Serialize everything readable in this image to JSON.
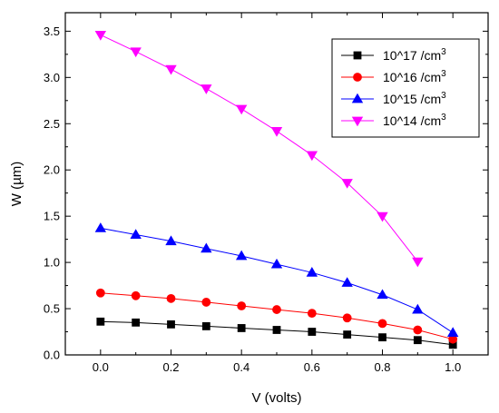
{
  "chart_data": {
    "type": "line",
    "xlabel": "V (volts)",
    "ylabel": "W (µm)",
    "xlim": [
      -0.1,
      1.1
    ],
    "ylim": [
      0.0,
      3.7
    ],
    "xticks": [
      0.0,
      0.2,
      0.4,
      0.6,
      0.8,
      1.0
    ],
    "xtick_labels": [
      "0.0",
      "0.2",
      "0.4",
      "0.6",
      "0.8",
      "1.0"
    ],
    "yticks": [
      0.0,
      0.5,
      1.0,
      1.5,
      2.0,
      2.5,
      3.0,
      3.5
    ],
    "ytick_labels": [
      "0.0",
      "0.5",
      "1.0",
      "1.5",
      "2.0",
      "2.5",
      "3.0",
      "3.5"
    ],
    "grid": false,
    "legend_position": "top-right",
    "series": [
      {
        "name": "10^17 /cm",
        "name_sup": "3",
        "color": "#000000",
        "marker": "square",
        "x": [
          0.0,
          0.1,
          0.2,
          0.3,
          0.4,
          0.5,
          0.6,
          0.7,
          0.8,
          0.9,
          1.0
        ],
        "y": [
          0.36,
          0.35,
          0.33,
          0.31,
          0.29,
          0.27,
          0.25,
          0.22,
          0.19,
          0.16,
          0.11
        ]
      },
      {
        "name": "10^16 /cm",
        "name_sup": "3",
        "color": "#ff0000",
        "marker": "circle",
        "x": [
          0.0,
          0.1,
          0.2,
          0.3,
          0.4,
          0.5,
          0.6,
          0.7,
          0.8,
          0.9,
          1.0
        ],
        "y": [
          0.67,
          0.64,
          0.61,
          0.57,
          0.53,
          0.49,
          0.45,
          0.4,
          0.34,
          0.27,
          0.17
        ]
      },
      {
        "name": "10^15 /cm",
        "name_sup": "3",
        "color": "#0000ff",
        "marker": "triangle-up",
        "x": [
          0.0,
          0.1,
          0.2,
          0.3,
          0.4,
          0.5,
          0.6,
          0.7,
          0.8,
          0.9,
          1.0
        ],
        "y": [
          1.37,
          1.3,
          1.23,
          1.15,
          1.07,
          0.98,
          0.89,
          0.78,
          0.65,
          0.49,
          0.24
        ]
      },
      {
        "name": "10^14 /cm",
        "name_sup": "3",
        "color": "#ff00ff",
        "marker": "triangle-down",
        "x": [
          0.0,
          0.1,
          0.2,
          0.3,
          0.4,
          0.5,
          0.6,
          0.7,
          0.8,
          0.9
        ],
        "y": [
          3.46,
          3.28,
          3.09,
          2.88,
          2.66,
          2.42,
          2.16,
          1.86,
          1.5,
          1.01
        ]
      }
    ]
  }
}
